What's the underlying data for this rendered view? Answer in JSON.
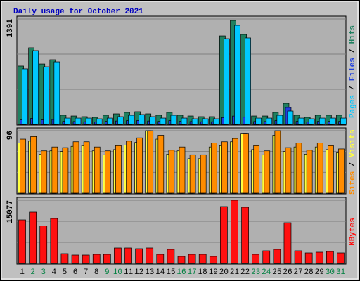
{
  "chart_data": [
    {
      "type": "bar",
      "title": "Daily usage for October 2021",
      "ylim": [
        0,
        1391
      ],
      "yticks": [
        1391
      ],
      "legend_separator": " / ",
      "series": [
        {
          "name": "Hits",
          "color": "#1f8060",
          "values": [
            770,
            1011,
            797,
            853,
            121,
            111,
            102,
            93,
            121,
            139,
            158,
            167,
            139,
            121,
            158,
            121,
            111,
            102,
            102,
            1168,
            1372,
            1187,
            111,
            111,
            158,
            278,
            121,
            93,
            121,
            121,
            121
          ]
        },
        {
          "name": "Files",
          "color": "#2040e0",
          "values": [
            60,
            80,
            60,
            65,
            40,
            38,
            35,
            33,
            40,
            45,
            50,
            52,
            45,
            40,
            50,
            40,
            38,
            35,
            35,
            90,
            110,
            95,
            38,
            38,
            50,
            223,
            40,
            33,
            40,
            40,
            40
          ]
        },
        {
          "name": "Pages",
          "color": "#00c8ff",
          "values": [
            733,
            974,
            760,
            825,
            83,
            83,
            83,
            74,
            83,
            102,
            120,
            130,
            102,
            83,
            120,
            83,
            74,
            74,
            74,
            1131,
            1307,
            1141,
            83,
            83,
            120,
            176,
            83,
            74,
            83,
            83,
            83
          ]
        }
      ]
    },
    {
      "type": "bar",
      "ylim": [
        0,
        96
      ],
      "yticks": [
        96
      ],
      "legend_separator": " / ",
      "series": [
        {
          "name": "Visits",
          "color": "#ffff40",
          "values": [
            77,
            80,
            60,
            65,
            64,
            72,
            73,
            65,
            59,
            67,
            74,
            78,
            96,
            83,
            60,
            65,
            53,
            53,
            71,
            73,
            79,
            91,
            67,
            59,
            89,
            64,
            71,
            60,
            71,
            67,
            62
          ]
        },
        {
          "name": "Sites",
          "color": "#ff8c00",
          "values": [
            83,
            87,
            65,
            71,
            70,
            79,
            79,
            71,
            65,
            73,
            80,
            85,
            96,
            89,
            66,
            71,
            59,
            59,
            77,
            79,
            84,
            91,
            73,
            65,
            96,
            70,
            77,
            66,
            77,
            73,
            68
          ]
        }
      ]
    },
    {
      "type": "bar",
      "ylim": [
        0,
        15077
      ],
      "yticks": [
        15077
      ],
      "series": [
        {
          "name": "KBytes",
          "color": "#ff1010",
          "values": [
            10385,
            12229,
            8970,
            10719,
            2345,
            2010,
            2010,
            2178,
            2178,
            3685,
            3685,
            3518,
            3685,
            2178,
            3350,
            1675,
            2178,
            2178,
            1675,
            13569,
            15077,
            13401,
            2178,
            3015,
            3350,
            9715,
            3015,
            2513,
            2680,
            2848,
            2513
          ]
        }
      ],
      "categories": [
        1,
        2,
        3,
        4,
        5,
        6,
        7,
        8,
        9,
        10,
        11,
        12,
        13,
        14,
        15,
        16,
        17,
        18,
        19,
        20,
        21,
        22,
        23,
        24,
        25,
        26,
        27,
        28,
        29,
        30,
        31
      ],
      "category_colors": [
        "#000000",
        "#008040",
        "#008040",
        "#000000",
        "#000000",
        "#000000",
        "#000000",
        "#000000",
        "#008040",
        "#008040",
        "#000000",
        "#000000",
        "#000000",
        "#000000",
        "#000000",
        "#008040",
        "#008040",
        "#000000",
        "#000000",
        "#000000",
        "#000000",
        "#000000",
        "#008040",
        "#008040",
        "#000000",
        "#000000",
        "#000000",
        "#000000",
        "#000000",
        "#008040",
        "#008040"
      ]
    }
  ]
}
